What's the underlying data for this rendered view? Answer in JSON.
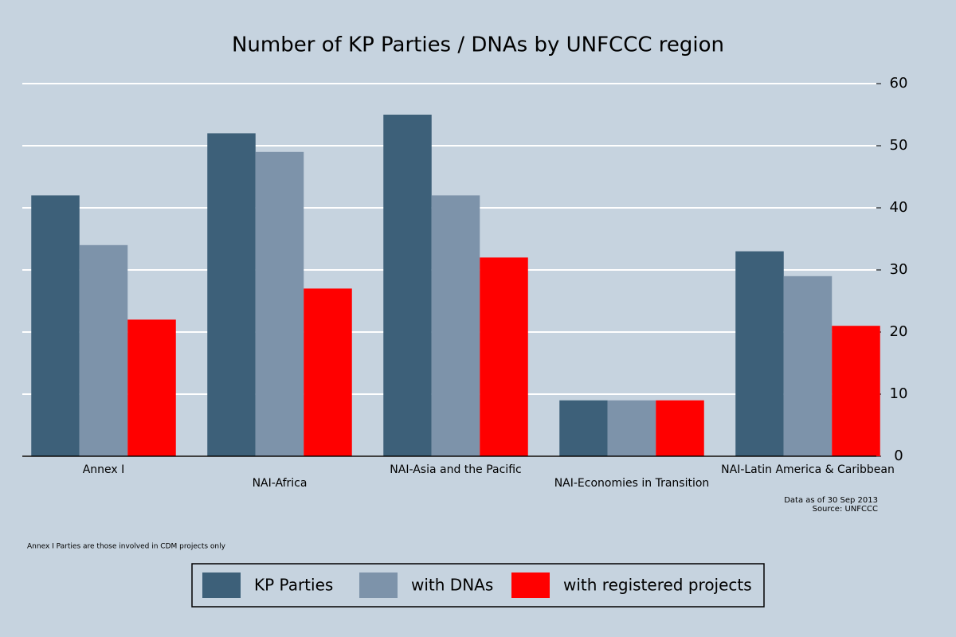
{
  "chart_data": {
    "type": "bar",
    "title": "Number of KP Parties / DNAs by UNFCCC region",
    "categories": [
      "Annex I",
      "NAI-Africa",
      "NAI-Asia and the Pacific",
      "NAI-Economies in Transition",
      "NAI-Latin America & Caribbean"
    ],
    "series": [
      {
        "name": "KP Parties",
        "color": "#3d6079",
        "values": [
          42,
          52,
          55,
          9,
          33
        ]
      },
      {
        "name": "with DNAs",
        "color": "#7d93aa",
        "values": [
          34,
          49,
          42,
          9,
          29
        ]
      },
      {
        "name": "with registered projects",
        "color": "#ff0000",
        "values": [
          22,
          27,
          32,
          9,
          21
        ]
      }
    ],
    "ylim": [
      0,
      60
    ],
    "yticks": [
      0,
      10,
      20,
      30,
      40,
      50,
      60
    ],
    "grid": true,
    "y_axis_side": "right",
    "annotations": [
      "Data as of 30 Sep 2013",
      "Source: UNFCCC",
      "Annex I Parties are those involved in CDM projects only"
    ],
    "legend_position": "bottom"
  }
}
